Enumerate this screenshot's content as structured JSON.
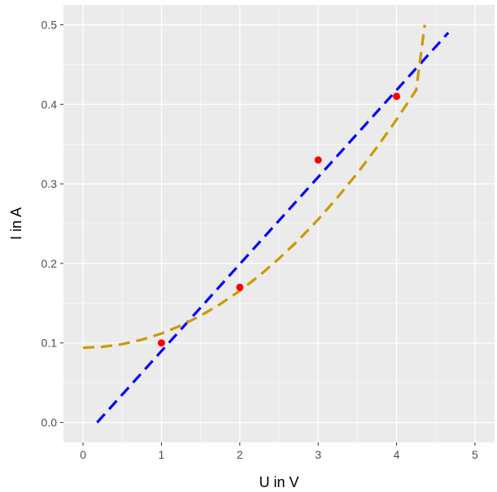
{
  "chart_data": {
    "type": "scatter",
    "xlabel": "U in V",
    "ylabel": "I in A",
    "xlim": [
      -0.25,
      5.25
    ],
    "ylim": [
      -0.025,
      0.525
    ],
    "x_ticks": [
      0,
      1,
      2,
      3,
      4,
      5
    ],
    "x_tick_labels": [
      "0",
      "1",
      "2",
      "3",
      "4",
      "5"
    ],
    "y_ticks": [
      0.0,
      0.1,
      0.2,
      0.3,
      0.4,
      0.5
    ],
    "y_tick_labels": [
      "0.0",
      "0.1",
      "0.2",
      "0.3",
      "0.4",
      "0.5"
    ],
    "grid": true,
    "points": {
      "color": "#ff0000",
      "x": [
        1,
        2,
        3,
        4
      ],
      "y": [
        0.1,
        0.17,
        0.33,
        0.41
      ]
    },
    "lines": [
      {
        "style": "dashed",
        "color": "#0000ff",
        "x": [
          0.18,
          4.66
        ],
        "y": [
          0.0,
          0.49
        ]
      },
      {
        "style": "dashed",
        "color": "#cc9900",
        "x": [
          0,
          0.25,
          0.5,
          0.75,
          1.0,
          1.25,
          1.5,
          1.75,
          2.0,
          2.25,
          2.5,
          2.75,
          3.0,
          3.25,
          3.5,
          3.75,
          4.0,
          4.25,
          4.36
        ],
        "y": [
          0.094,
          0.0951,
          0.0985,
          0.1041,
          0.1119,
          0.1219,
          0.1343,
          0.1488,
          0.1656,
          0.1847,
          0.206,
          0.2295,
          0.2553,
          0.2834,
          0.3136,
          0.3461,
          0.3809,
          0.4179,
          0.5
        ]
      }
    ]
  }
}
